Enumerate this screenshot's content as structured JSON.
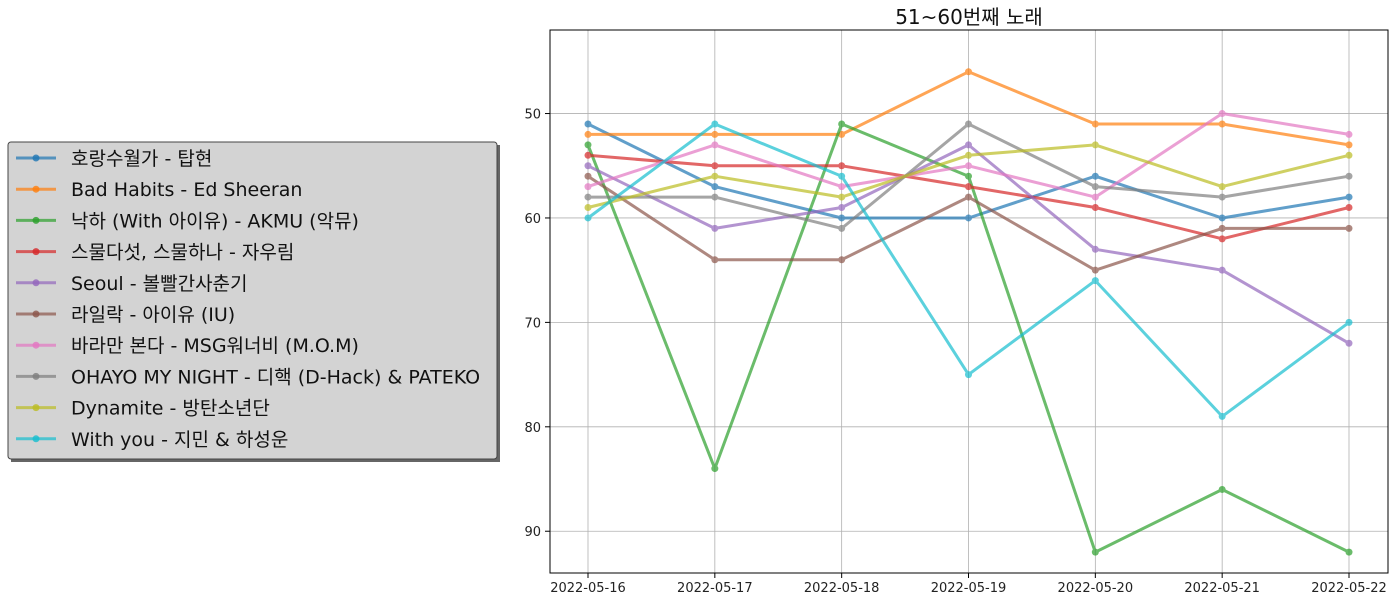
{
  "chart_data": {
    "type": "line",
    "title": "51~60번째 노래",
    "xlabel": "",
    "ylabel": "",
    "x": [
      "2022-05-16",
      "2022-05-17",
      "2022-05-18",
      "2022-05-19",
      "2022-05-20",
      "2022-05-21",
      "2022-05-22"
    ],
    "ylim": [
      94,
      42
    ],
    "y_inverted": true,
    "yticks": [
      50,
      60,
      70,
      80,
      90
    ],
    "grid": true,
    "legend_position": "left",
    "series": [
      {
        "name": "호랑수월가 - 탑현",
        "color": "#1f77b4",
        "values": [
          51,
          57,
          60,
          60,
          56,
          60,
          58
        ]
      },
      {
        "name": "Bad Habits - Ed Sheeran",
        "color": "#ff7f0e",
        "values": [
          52,
          52,
          52,
          46,
          51,
          51,
          53
        ]
      },
      {
        "name": "낙하 (With 아이유) - AKMU (악뮤)",
        "color": "#2ca02c",
        "values": [
          53,
          84,
          51,
          56,
          92,
          86,
          92
        ]
      },
      {
        "name": "스물다섯, 스물하나 - 자우림",
        "color": "#d62728",
        "values": [
          54,
          55,
          55,
          57,
          59,
          62,
          59
        ]
      },
      {
        "name": "Seoul - 볼빨간사춘기",
        "color": "#9467bd",
        "values": [
          55,
          61,
          59,
          53,
          63,
          65,
          72
        ]
      },
      {
        "name": "라일락 - 아이유 (IU)",
        "color": "#8c564b",
        "values": [
          56,
          64,
          64,
          58,
          65,
          61,
          61
        ]
      },
      {
        "name": "바라만 본다 - MSG워너비 (M.O.M)",
        "color": "#e377c2",
        "values": [
          57,
          53,
          57,
          55,
          58,
          50,
          52
        ]
      },
      {
        "name": "OHAYO MY NIGHT - 디핵 (D-Hack) & PATEKO",
        "color": "#7f7f7f",
        "values": [
          58,
          58,
          61,
          51,
          57,
          58,
          56
        ]
      },
      {
        "name": "Dynamite - 방탄소년단",
        "color": "#bcbd22",
        "values": [
          59,
          56,
          58,
          54,
          53,
          57,
          54
        ]
      },
      {
        "name": "With you - 지민 & 하성운",
        "color": "#17becf",
        "values": [
          60,
          51,
          56,
          75,
          66,
          79,
          70
        ]
      }
    ]
  }
}
